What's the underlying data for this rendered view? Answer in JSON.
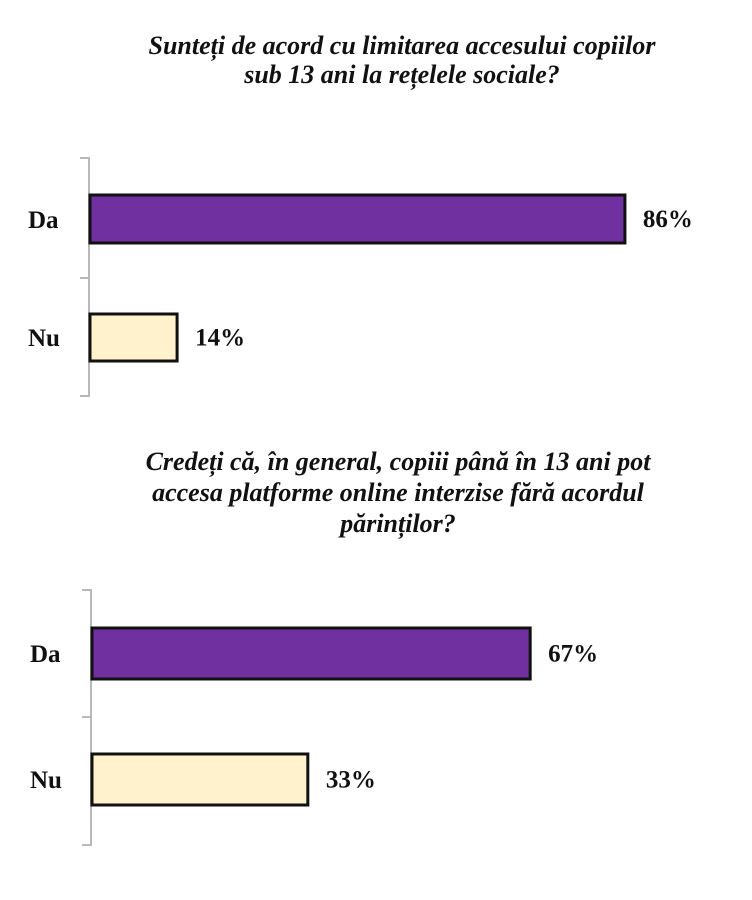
{
  "chart_data": [
    {
      "type": "bar",
      "orientation": "horizontal",
      "title_lines": [
        "Sunteți de acord cu limitarea accesului copiilor",
        "sub 13 ani la rețelele sociale?"
      ],
      "categories": [
        "Da",
        "Nu"
      ],
      "values": [
        86,
        14
      ],
      "value_labels": [
        "86%",
        "14%"
      ],
      "colors": [
        "#7030a0",
        "#fff2cc"
      ],
      "xlim": [
        0,
        100
      ]
    },
    {
      "type": "bar",
      "orientation": "horizontal",
      "title_lines": [
        "Credeți că, în general, copiii până în 13 ani pot",
        "accesa platforme online interzise fără acordul",
        "părinților?"
      ],
      "categories": [
        "Da",
        "Nu"
      ],
      "values": [
        67,
        33
      ],
      "value_labels": [
        "67%",
        "33%"
      ],
      "colors": [
        "#7030a0",
        "#fff2cc"
      ],
      "xlim": [
        0,
        100
      ]
    }
  ]
}
